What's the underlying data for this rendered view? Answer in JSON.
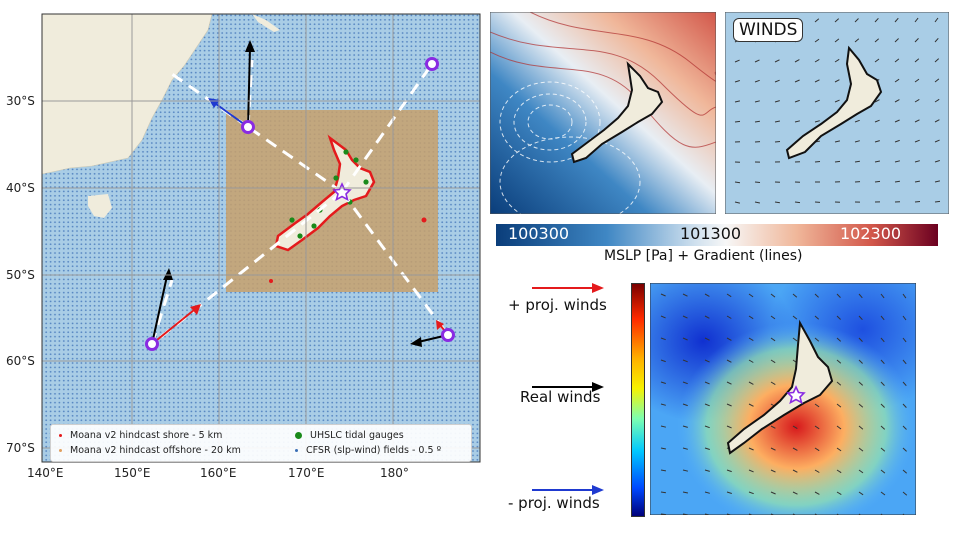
{
  "map": {
    "lat_labels": [
      "30°S",
      "40°S",
      "50°S",
      "60°S",
      "70°S"
    ],
    "lon_labels": [
      "140°E",
      "150°E",
      "160°E",
      "170°E",
      "180°"
    ],
    "legend": [
      {
        "label": "Moana v2 hindcast shore - 5 km",
        "color": "#e41a1c"
      },
      {
        "label": "UHSLC tidal gauges",
        "color": "#1a8a1a"
      },
      {
        "label": "Moana v2 hindcast offshore - 20 km",
        "color": "#e0a060"
      },
      {
        "label": "CFSR (slp-wind) fields - 0.5 º",
        "color": "#3b6fb6"
      }
    ]
  },
  "mslp": {
    "tick_min": "100300",
    "tick_mid": "101300",
    "tick_max": "102300",
    "label": "MSLP [Pa] + Gradient (lines)"
  },
  "winds_title": "WINDS",
  "projection": {
    "plus_label": "+ proj. winds",
    "real_label": "Real winds",
    "minus_label": "- proj. winds"
  },
  "colors": {
    "ocean": "#a9cde6",
    "land": "#f0ecdc",
    "star": "#8a2be2",
    "plus_arrow": "#e41a1c",
    "minus_arrow": "#1f3ad0"
  }
}
